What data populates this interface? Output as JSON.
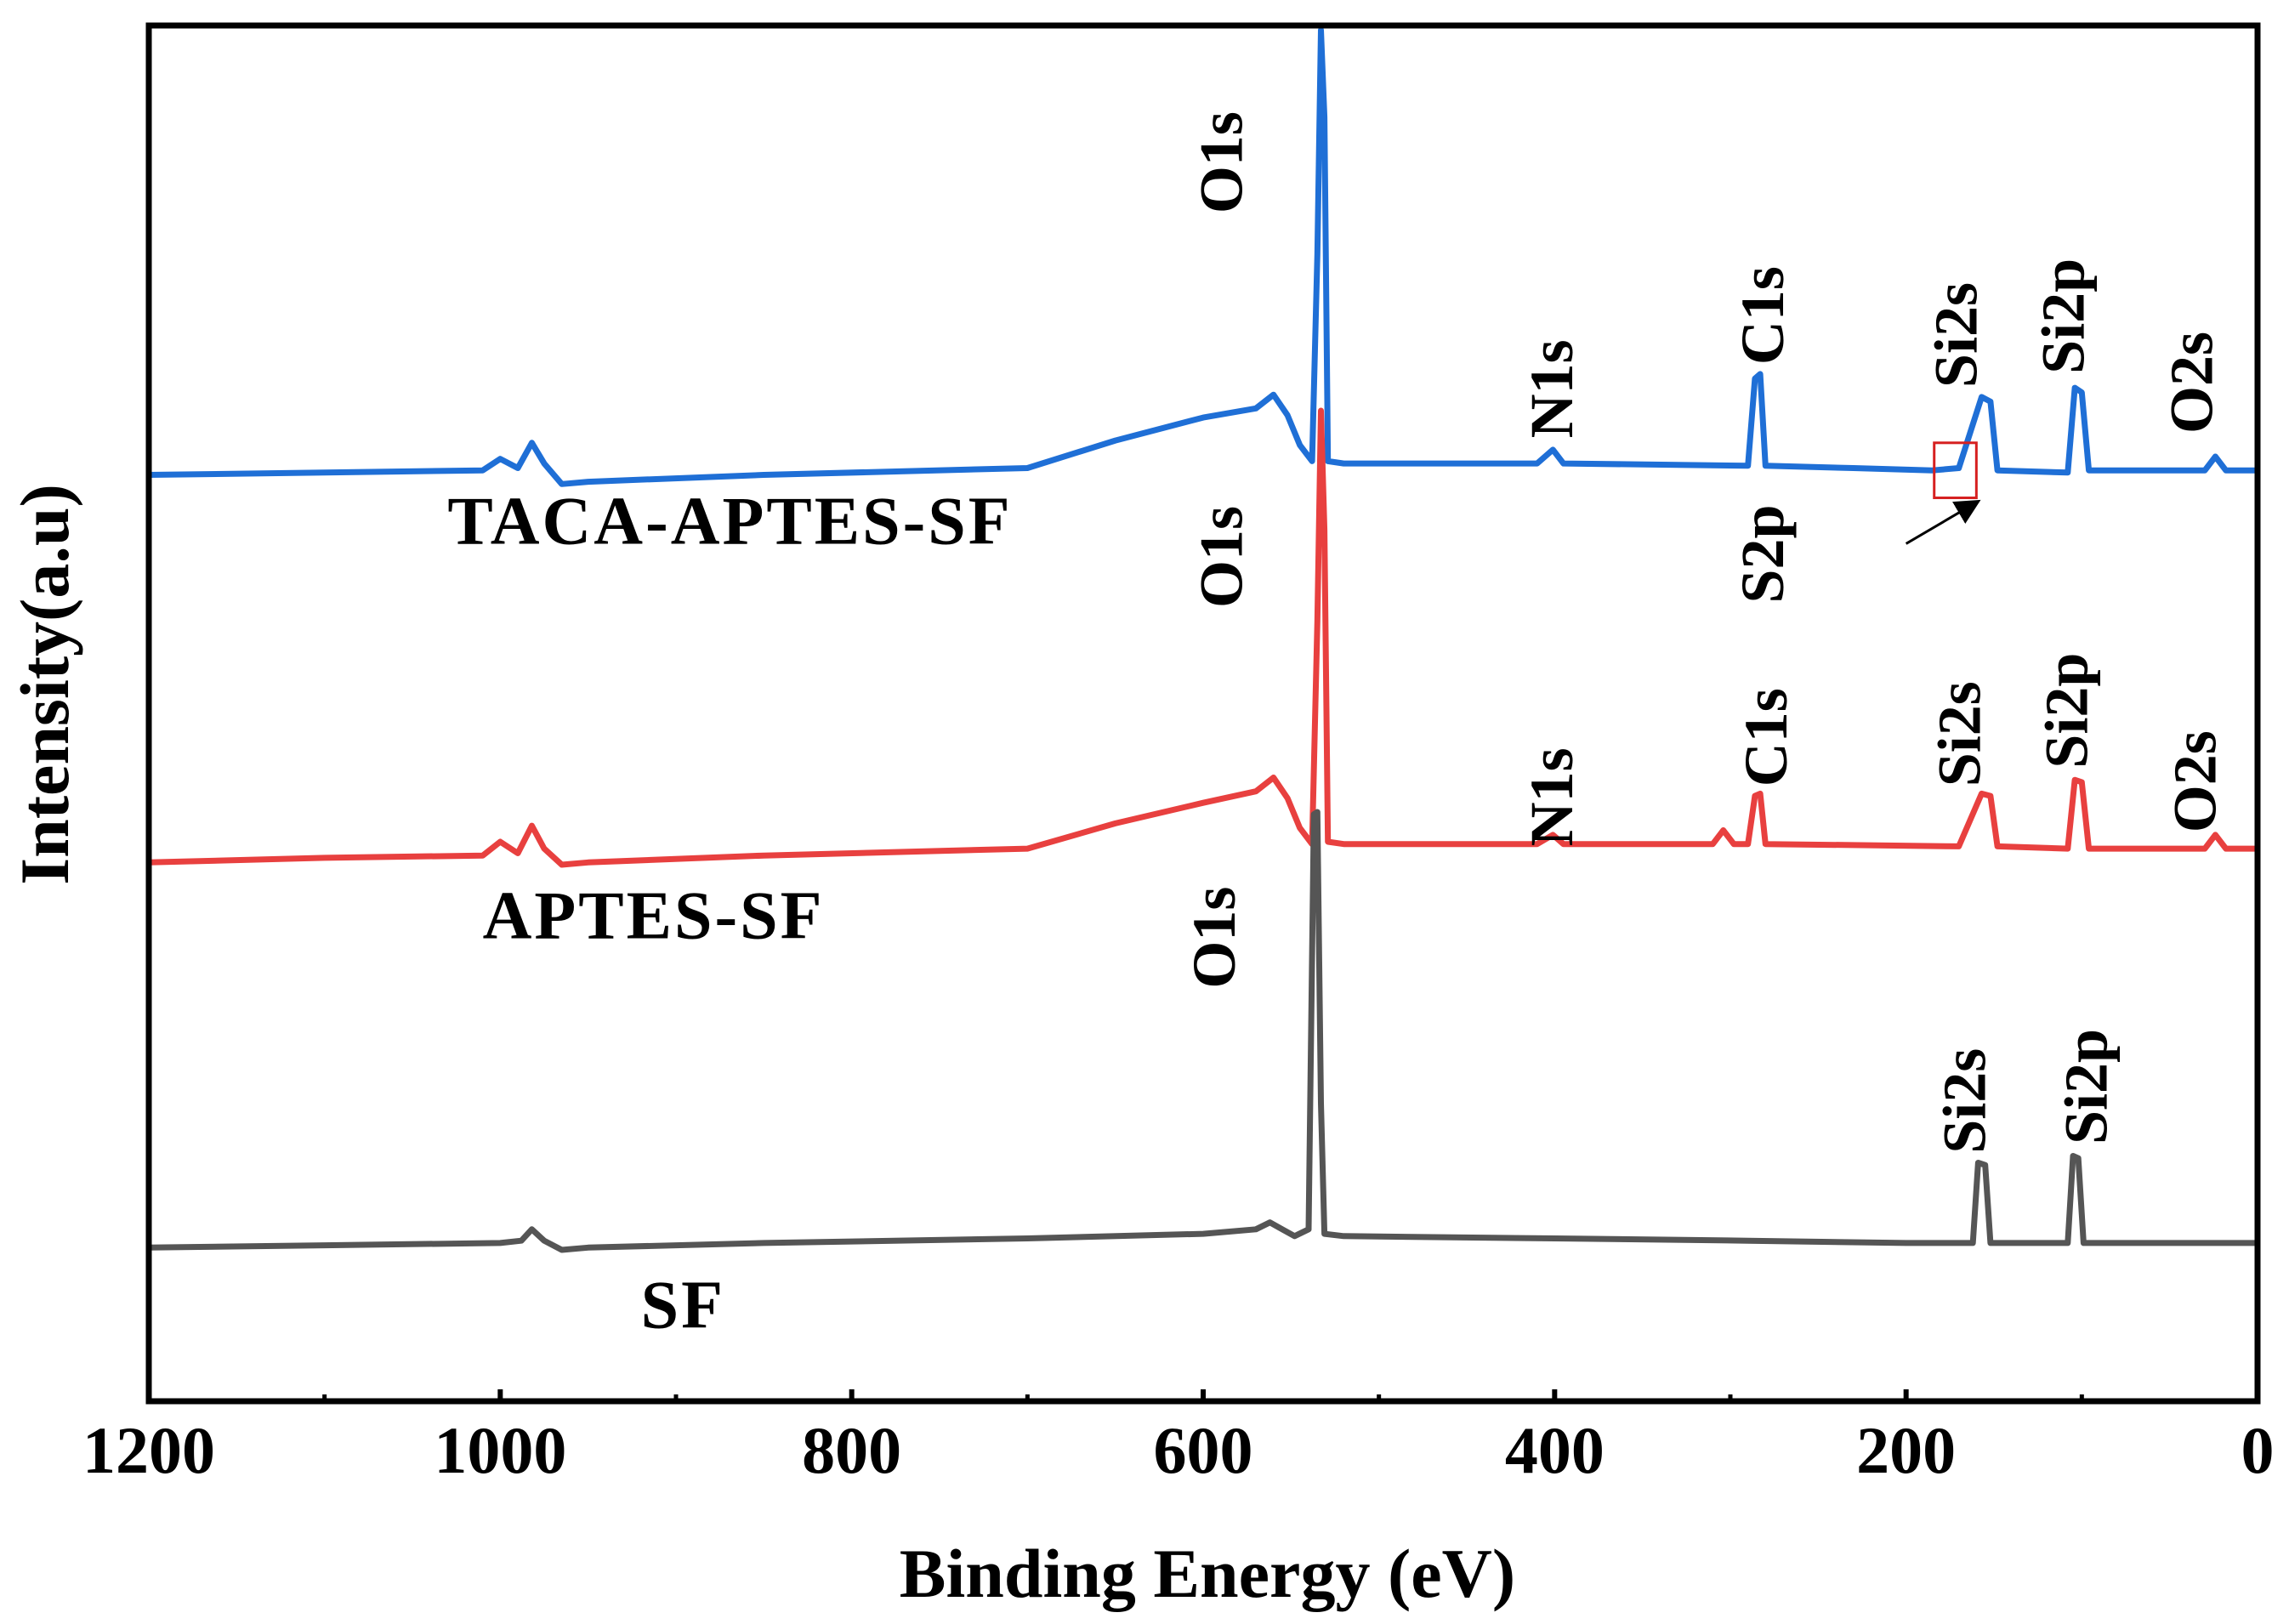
{
  "chart_data": {
    "type": "line",
    "title": "",
    "xlabel": "Binding Energy (eV)",
    "ylabel": "Intensity(a.u)",
    "xlim": [
      1200,
      0
    ],
    "x_reversed": true,
    "x_ticks": [
      1200,
      1000,
      800,
      600,
      400,
      200,
      0
    ],
    "y_ticks": [],
    "ylim": [
      0,
      30
    ],
    "grid": false,
    "legend": "inline labels",
    "series": [
      {
        "name": "TACA-APTES-SF",
        "color": "#1f6fd6",
        "baseline": 20.3,
        "points": [
          [
            1200,
            20.2
          ],
          [
            1100,
            20.25
          ],
          [
            1010,
            20.3
          ],
          [
            1000,
            20.55
          ],
          [
            990,
            20.35
          ],
          [
            982,
            20.9
          ],
          [
            975,
            20.45
          ],
          [
            965,
            20.0
          ],
          [
            950,
            20.05
          ],
          [
            850,
            20.2
          ],
          [
            700,
            20.35
          ],
          [
            650,
            20.95
          ],
          [
            600,
            21.45
          ],
          [
            570,
            21.65
          ],
          [
            560,
            21.95
          ],
          [
            552,
            21.5
          ],
          [
            545,
            20.85
          ],
          [
            538,
            20.5
          ],
          [
            535,
            25.0
          ],
          [
            533,
            29.9
          ],
          [
            531,
            28.0
          ],
          [
            529,
            20.5
          ],
          [
            520,
            20.45
          ],
          [
            410,
            20.45
          ],
          [
            401,
            20.75
          ],
          [
            395,
            20.45
          ],
          [
            290,
            20.4
          ],
          [
            286,
            22.3
          ],
          [
            283,
            22.4
          ],
          [
            280,
            20.4
          ],
          [
            230,
            20.35
          ],
          [
            185,
            20.3
          ],
          [
            170,
            20.35
          ],
          [
            157,
            21.9
          ],
          [
            152,
            21.8
          ],
          [
            148,
            20.3
          ],
          [
            108,
            20.25
          ],
          [
            104,
            22.1
          ],
          [
            100,
            22.0
          ],
          [
            96,
            20.3
          ],
          [
            30,
            20.3
          ],
          [
            24,
            20.6
          ],
          [
            18,
            20.3
          ],
          [
            0,
            20.3
          ]
        ]
      },
      {
        "name": "APTES-SF",
        "color": "#e8403f",
        "baseline": 11.8,
        "points": [
          [
            1200,
            11.75
          ],
          [
            1100,
            11.85
          ],
          [
            1010,
            11.9
          ],
          [
            1000,
            12.2
          ],
          [
            990,
            11.95
          ],
          [
            982,
            12.55
          ],
          [
            975,
            12.05
          ],
          [
            965,
            11.7
          ],
          [
            950,
            11.75
          ],
          [
            850,
            11.9
          ],
          [
            700,
            12.05
          ],
          [
            650,
            12.6
          ],
          [
            600,
            13.05
          ],
          [
            570,
            13.3
          ],
          [
            560,
            13.6
          ],
          [
            552,
            13.15
          ],
          [
            545,
            12.5
          ],
          [
            538,
            12.15
          ],
          [
            535,
            17.0
          ],
          [
            533,
            21.6
          ],
          [
            531,
            19.0
          ],
          [
            529,
            12.2
          ],
          [
            520,
            12.15
          ],
          [
            410,
            12.15
          ],
          [
            401,
            12.35
          ],
          [
            395,
            12.15
          ],
          [
            310,
            12.15
          ],
          [
            304,
            12.45
          ],
          [
            298,
            12.15
          ],
          [
            290,
            12.15
          ],
          [
            286,
            13.2
          ],
          [
            283,
            13.25
          ],
          [
            280,
            12.15
          ],
          [
            170,
            12.1
          ],
          [
            157,
            13.25
          ],
          [
            152,
            13.2
          ],
          [
            148,
            12.1
          ],
          [
            108,
            12.05
          ],
          [
            104,
            13.55
          ],
          [
            100,
            13.5
          ],
          [
            96,
            12.05
          ],
          [
            30,
            12.05
          ],
          [
            24,
            12.35
          ],
          [
            18,
            12.05
          ],
          [
            0,
            12.05
          ]
        ]
      },
      {
        "name": "SF",
        "color": "#555555",
        "baseline": 3.4,
        "points": [
          [
            1200,
            3.35
          ],
          [
            1100,
            3.4
          ],
          [
            1000,
            3.45
          ],
          [
            988,
            3.5
          ],
          [
            982,
            3.75
          ],
          [
            975,
            3.5
          ],
          [
            965,
            3.3
          ],
          [
            950,
            3.35
          ],
          [
            850,
            3.45
          ],
          [
            700,
            3.55
          ],
          [
            600,
            3.65
          ],
          [
            570,
            3.75
          ],
          [
            562,
            3.9
          ],
          [
            555,
            3.75
          ],
          [
            548,
            3.6
          ],
          [
            540,
            3.75
          ],
          [
            537,
            12.8
          ],
          [
            535,
            12.85
          ],
          [
            533,
            6.5
          ],
          [
            531,
            3.65
          ],
          [
            520,
            3.6
          ],
          [
            400,
            3.55
          ],
          [
            290,
            3.5
          ],
          [
            200,
            3.45
          ],
          [
            162,
            3.45
          ],
          [
            159,
            5.2
          ],
          [
            155,
            5.15
          ],
          [
            152,
            3.45
          ],
          [
            108,
            3.45
          ],
          [
            105,
            5.35
          ],
          [
            102,
            5.3
          ],
          [
            99,
            3.45
          ],
          [
            30,
            3.45
          ],
          [
            0,
            3.45
          ]
        ]
      }
    ],
    "series_labels": [
      {
        "text": "TACA-APTES-SF",
        "x": 1030,
        "y": 18.7
      },
      {
        "text": "APTES-SF",
        "x": 1010,
        "y": 10.1
      },
      {
        "text": "SF",
        "x": 920,
        "y": 1.6
      }
    ],
    "peak_labels": [
      {
        "series": "TACA-APTES-SF",
        "text": "O1s",
        "x": 578,
        "y": 25.9
      },
      {
        "series": "TACA-APTES-SF",
        "text": "N1s",
        "x": 390,
        "y": 21.0
      },
      {
        "series": "TACA-APTES-SF",
        "text": "C1s",
        "x": 270,
        "y": 22.6
      },
      {
        "series": "TACA-APTES-SF",
        "text": "S2p",
        "x": 270,
        "y": 17.4
      },
      {
        "series": "TACA-APTES-SF",
        "text": "Si2s",
        "x": 160,
        "y": 22.1
      },
      {
        "series": "TACA-APTES-SF",
        "text": "Si2p",
        "x": 99,
        "y": 22.4
      },
      {
        "series": "TACA-APTES-SF",
        "text": "O2s",
        "x": 26,
        "y": 21.1
      },
      {
        "series": "APTES-SF",
        "text": "O1s",
        "x": 578,
        "y": 17.3
      },
      {
        "series": "APTES-SF",
        "text": "N1s",
        "x": 390,
        "y": 12.1
      },
      {
        "series": "APTES-SF",
        "text": "C1s",
        "x": 268,
        "y": 13.4
      },
      {
        "series": "APTES-SF",
        "text": "Si2s",
        "x": 158,
        "y": 13.4
      },
      {
        "series": "APTES-SF",
        "text": "Si2p",
        "x": 97,
        "y": 13.8
      },
      {
        "series": "APTES-SF",
        "text": "O2s",
        "x": 24,
        "y": 12.4
      },
      {
        "series": "SF",
        "text": "O1s",
        "x": 582,
        "y": 9.0
      },
      {
        "series": "SF",
        "text": "Si2s",
        "x": 155,
        "y": 5.4
      },
      {
        "series": "SF",
        "text": "Si2p",
        "x": 86,
        "y": 5.6
      }
    ],
    "annotations": [
      {
        "type": "box",
        "series": "TACA-APTES-SF",
        "x_from": 184,
        "x_to": 160,
        "y_from": 19.7,
        "y_to": 20.9,
        "color": "#d62020"
      },
      {
        "type": "arrow",
        "from": [
          200,
          18.7
        ],
        "to": [
          160,
          19.6
        ],
        "color": "#000000"
      }
    ]
  }
}
